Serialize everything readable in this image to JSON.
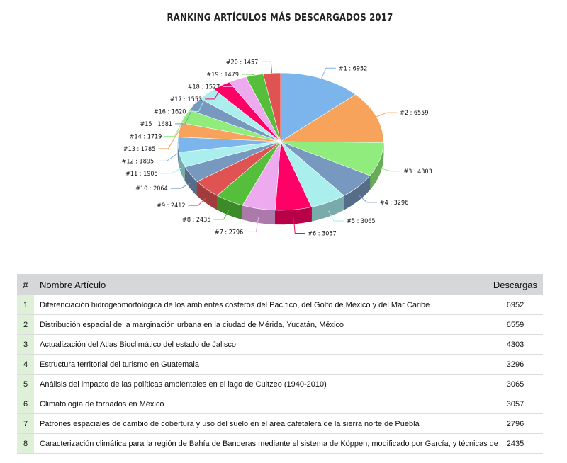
{
  "chart_data": {
    "type": "pie",
    "title": "RANKING ARTÍCULOS MÁS DESCARGADOS 2017",
    "labels": [
      "#1",
      "#2",
      "#3",
      "#4",
      "#5",
      "#6",
      "#7",
      "#8",
      "#9",
      "#10",
      "#11",
      "#12",
      "#13",
      "#14",
      "#15",
      "#16",
      "#17",
      "#18",
      "#19",
      "#20"
    ],
    "values": [
      6952,
      6559,
      4303,
      3296,
      3065,
      3057,
      2796,
      2435,
      2412,
      2064,
      1905,
      1895,
      1785,
      1719,
      1681,
      1620,
      1553,
      1527,
      1479,
      1457
    ],
    "colors": [
      "#7cb5ec",
      "#f7a35c",
      "#90ed7d",
      "#7798bf",
      "#aaeeee",
      "#ff0066",
      "#eeaaee",
      "#55bf3b",
      "#df5353",
      "#7798bf",
      "#aaeeee",
      "#7cb5ec",
      "#f7a35c",
      "#90ed7d",
      "#7798bf",
      "#aaeeee",
      "#ff0066",
      "#eeaaee",
      "#55bf3b",
      "#df5353"
    ],
    "style": "3d-pie"
  },
  "table": {
    "headers": {
      "num": "#",
      "name": "Nombre Artículo",
      "downloads": "Descargas"
    },
    "rows": [
      {
        "num": "1",
        "name": "Diferenciación hidrogeomorfológica de los ambientes costeros del Pacífico, del Golfo de México y del Mar Caribe",
        "downloads": "6952"
      },
      {
        "num": "2",
        "name": "Distribución espacial de la marginación urbana en la ciudad de Mérida, Yucatán, México",
        "downloads": "6559"
      },
      {
        "num": "3",
        "name": "Actualización del Atlas Bioclimático del estado de Jalisco",
        "downloads": "4303"
      },
      {
        "num": "4",
        "name": "Estructura territorial del turismo en Guatemala",
        "downloads": "3296"
      },
      {
        "num": "5",
        "name": "Análisis del impacto de las políticas ambientales en el lago de Cuitzeo (1940-2010)",
        "downloads": "3065"
      },
      {
        "num": "6",
        "name": "Climatología de tornados en México",
        "downloads": "3057"
      },
      {
        "num": "7",
        "name": "Patrones espaciales de cambio de cobertura y uso del suelo en el área cafetalera de la sierra norte de Puebla",
        "downloads": "2796"
      },
      {
        "num": "8",
        "name": "Caracterización climática para la región de Bahía de Banderas mediante el sistema de Köppen, modificado por García, y técnicas de",
        "downloads": "2435"
      }
    ]
  }
}
